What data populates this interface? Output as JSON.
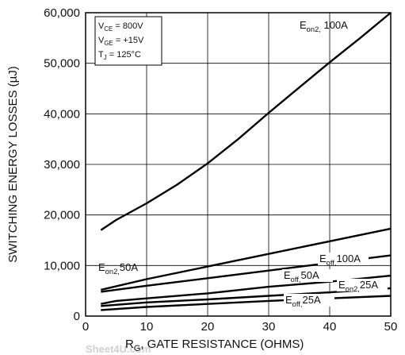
{
  "chart_data": {
    "type": "line",
    "title": "",
    "xlabel": {
      "main": "R",
      "sub": "G",
      "rest": ", GATE RESISTANCE (OHMS)"
    },
    "ylabel": "SWITCHING ENERGY LOSSES (µJ)",
    "xlim": [
      0,
      50
    ],
    "ylim": [
      0,
      60000
    ],
    "x_ticks": [
      "0",
      "10",
      "20",
      "30",
      "40",
      "50"
    ],
    "y_ticks": [
      "0",
      "10,000",
      "20,000",
      "30,000",
      "40,000",
      "50,000",
      "60,000"
    ],
    "grid": true,
    "conditions": [
      {
        "main": "V",
        "sub": "CE",
        "rest": " =  800V"
      },
      {
        "main": "V",
        "sub": "GE",
        "rest": " =  +15V"
      },
      {
        "main": "T",
        "sub": "J",
        "rest": " = 125°C"
      }
    ],
    "series": [
      {
        "name": "Eon2 100A",
        "label": {
          "main": "E",
          "sub": "on2,",
          "rest": " 100A"
        },
        "x": [
          2.5,
          5,
          10,
          15,
          20,
          25,
          30,
          35,
          40,
          45,
          50
        ],
        "y": [
          17000,
          19000,
          22300,
          26000,
          30200,
          35000,
          40200,
          45200,
          50200,
          55000,
          60000
        ]
      },
      {
        "name": "Eon2 50A",
        "label": {
          "main": "E",
          "sub": "on2,",
          "rest": "50A"
        },
        "x": [
          2.5,
          10,
          20,
          30,
          40,
          50
        ],
        "y": [
          5200,
          7300,
          9800,
          12300,
          14800,
          17300
        ]
      },
      {
        "name": "Eoff 100A",
        "label": {
          "main": "E",
          "sub": "off,",
          "rest": "100A"
        },
        "x": [
          2.5,
          10,
          20,
          30,
          40,
          50
        ],
        "y": [
          4800,
          6000,
          7500,
          9000,
          10500,
          12000
        ]
      },
      {
        "name": "Eoff 50A",
        "label": {
          "main": "E",
          "sub": "off,",
          "rest": "50A"
        },
        "x": [
          2.5,
          5,
          10,
          20,
          30,
          40,
          50
        ],
        "y": [
          2400,
          3000,
          3500,
          4500,
          5800,
          6800,
          8000
        ]
      },
      {
        "name": "Eon2 25A",
        "label": {
          "main": "E",
          "sub": "on2,",
          "rest": "25A"
        },
        "x": [
          2.5,
          10,
          20,
          30,
          40,
          50
        ],
        "y": [
          2000,
          2700,
          3300,
          4000,
          4700,
          5500
        ]
      },
      {
        "name": "Eoff 25A",
        "label": {
          "main": "E",
          "sub": "off,",
          "rest": "25A"
        },
        "x": [
          2.5,
          10,
          20,
          30,
          40,
          50
        ],
        "y": [
          1200,
          1800,
          2400,
          3000,
          3500,
          4000
        ]
      }
    ]
  },
  "watermark": "Sheet4U.com"
}
